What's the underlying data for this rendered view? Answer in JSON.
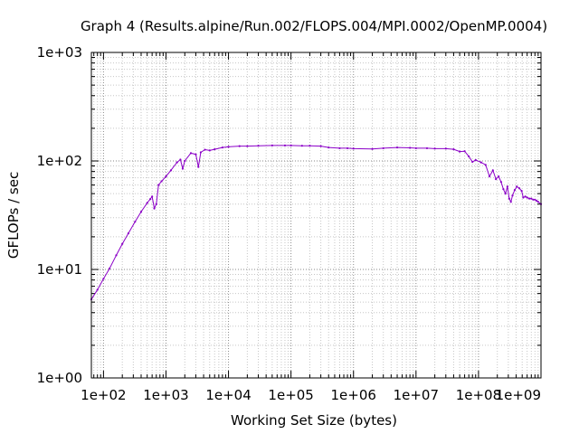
{
  "chart_data": {
    "type": "line",
    "title": "Graph 4 (Results.alpine/Run.002/FLOPS.004/MPI.0002/OpenMP.0004)",
    "xlabel": "Working Set Size (bytes)",
    "ylabel": "GFLOPs / sec",
    "x_scale": "log",
    "y_scale": "log",
    "xlim": [
      64,
      1000000000
    ],
    "ylim": [
      1,
      1000
    ],
    "grid": true,
    "x_ticks": [
      {
        "value": 100,
        "label": "1e+02"
      },
      {
        "value": 1000,
        "label": "1e+03"
      },
      {
        "value": 10000,
        "label": "1e+04"
      },
      {
        "value": 100000,
        "label": "1e+05"
      },
      {
        "value": 1000000,
        "label": "1e+06"
      },
      {
        "value": 10000000,
        "label": "1e+07"
      },
      {
        "value": 100000000,
        "label": "1e+08"
      },
      {
        "value": 1000000000,
        "label": "1e+09"
      }
    ],
    "y_ticks": [
      {
        "value": 1,
        "label": "1e+00"
      },
      {
        "value": 10,
        "label": "1e+01"
      },
      {
        "value": 100,
        "label": "1e+02"
      },
      {
        "value": 1000,
        "label": "1e+03"
      }
    ],
    "series": [
      {
        "color": "#8b00c8",
        "points": [
          [
            64,
            5.3
          ],
          [
            80,
            6.5
          ],
          [
            100,
            8.2
          ],
          [
            125,
            10.2
          ],
          [
            160,
            13.5
          ],
          [
            200,
            17.2
          ],
          [
            250,
            21.5
          ],
          [
            320,
            27.5
          ],
          [
            400,
            34.0
          ],
          [
            500,
            41.0
          ],
          [
            560,
            44.5
          ],
          [
            600,
            47.0
          ],
          [
            650,
            36.5
          ],
          [
            700,
            40.0
          ],
          [
            760,
            60.0
          ],
          [
            850,
            65.0
          ],
          [
            1000,
            72.0
          ],
          [
            1200,
            82.0
          ],
          [
            1500,
            97.0
          ],
          [
            1700,
            103.0
          ],
          [
            1850,
            85.0
          ],
          [
            2000,
            100.0
          ],
          [
            2500,
            118.0
          ],
          [
            3000,
            115.0
          ],
          [
            3300,
            88.0
          ],
          [
            3600,
            120.0
          ],
          [
            4200,
            127.0
          ],
          [
            5000,
            125.0
          ],
          [
            6000,
            128.0
          ],
          [
            8000,
            133.0
          ],
          [
            10000,
            135.0
          ],
          [
            15000,
            137.0
          ],
          [
            20000,
            137.0
          ],
          [
            30000,
            138.0
          ],
          [
            50000,
            139.0
          ],
          [
            80000,
            139.0
          ],
          [
            100000,
            139.0
          ],
          [
            150000,
            138.0
          ],
          [
            200000,
            138.0
          ],
          [
            300000,
            137.0
          ],
          [
            400000,
            133.0
          ],
          [
            600000,
            131.0
          ],
          [
            800000,
            131.0
          ],
          [
            1000000,
            130.0
          ],
          [
            2000000,
            129.0
          ],
          [
            3000000,
            131.0
          ],
          [
            5000000,
            133.0
          ],
          [
            8000000,
            132.0
          ],
          [
            10000000,
            131.0
          ],
          [
            15000000,
            131.0
          ],
          [
            20000000,
            130.0
          ],
          [
            30000000,
            130.0
          ],
          [
            40000000,
            128.0
          ],
          [
            50000000,
            122.0
          ],
          [
            60000000,
            123.0
          ],
          [
            70000000,
            110.0
          ],
          [
            80000000,
            98.0
          ],
          [
            90000000,
            102.0
          ],
          [
            110000000,
            97.0
          ],
          [
            130000000,
            92.0
          ],
          [
            150000000,
            72.0
          ],
          [
            170000000,
            82.0
          ],
          [
            190000000,
            68.0
          ],
          [
            210000000,
            72.0
          ],
          [
            230000000,
            64.0
          ],
          [
            250000000,
            55.0
          ],
          [
            270000000,
            50.0
          ],
          [
            290000000,
            58.0
          ],
          [
            310000000,
            45.0
          ],
          [
            330000000,
            42.0
          ],
          [
            350000000,
            48.0
          ],
          [
            380000000,
            54.0
          ],
          [
            410000000,
            58.0
          ],
          [
            450000000,
            56.0
          ],
          [
            490000000,
            53.0
          ],
          [
            520000000,
            46.0
          ],
          [
            560000000,
            47.0
          ],
          [
            600000000,
            46.0
          ],
          [
            650000000,
            45.0
          ],
          [
            700000000,
            45.0
          ],
          [
            750000000,
            44.0
          ],
          [
            800000000,
            44.0
          ],
          [
            850000000,
            43.0
          ],
          [
            900000000,
            42.0
          ],
          [
            1000000000,
            40.0
          ]
        ]
      }
    ]
  }
}
